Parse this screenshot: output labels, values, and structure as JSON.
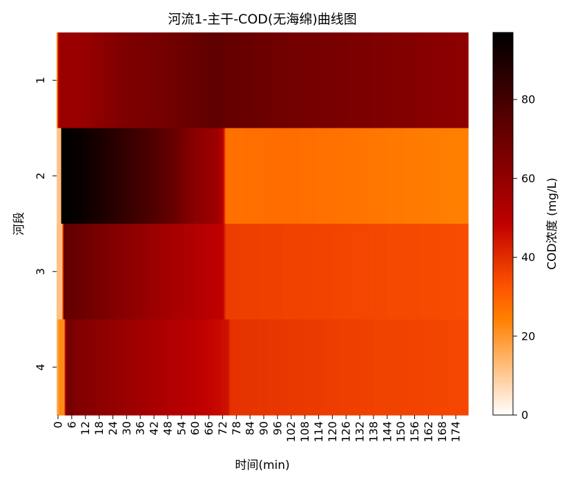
{
  "chart_data": {
    "type": "heatmap",
    "title": "河流1-主干-COD(无海绵)曲线图",
    "xlabel": "时间(min)",
    "ylabel": "河段",
    "colorbar_label": "COD浓度 (mg/L)",
    "colormap": "gist_heat_r",
    "x_range": [
      0,
      180
    ],
    "x_step": 6,
    "x_ticks": [
      "0",
      "6",
      "12",
      "18",
      "24",
      "30",
      "36",
      "42",
      "48",
      "54",
      "60",
      "66",
      "72",
      "78",
      "84",
      "90",
      "96",
      "102",
      "108",
      "114",
      "120",
      "126",
      "132",
      "138",
      "144",
      "150",
      "156",
      "162",
      "168",
      "174"
    ],
    "rows": [
      "1",
      "2",
      "3",
      "4"
    ],
    "colorbar_range": [
      0,
      97
    ],
    "colorbar_ticks": [
      "0",
      "20",
      "40",
      "60",
      "80"
    ],
    "row_profiles": [
      {
        "row": "1",
        "points": [
          [
            0,
            10
          ],
          [
            1,
            58
          ],
          [
            10,
            58
          ],
          [
            30,
            65
          ],
          [
            50,
            68
          ],
          [
            70,
            73
          ],
          [
            73,
            72
          ],
          [
            100,
            68
          ],
          [
            140,
            65
          ],
          [
            180,
            61
          ]
        ]
      },
      {
        "row": "2",
        "points": [
          [
            0,
            10
          ],
          [
            1,
            12
          ],
          [
            1.8,
            12
          ],
          [
            2,
            97
          ],
          [
            10,
            95
          ],
          [
            30,
            84
          ],
          [
            50,
            72
          ],
          [
            60,
            62
          ],
          [
            70,
            57
          ],
          [
            72,
            53
          ],
          [
            73,
            49
          ],
          [
            74,
            27
          ],
          [
            100,
            28
          ],
          [
            140,
            26
          ],
          [
            180,
            24
          ]
        ]
      },
      {
        "row": "3",
        "points": [
          [
            0,
            12
          ],
          [
            2,
            12
          ],
          [
            2.6,
            12
          ],
          [
            3,
            72
          ],
          [
            10,
            70
          ],
          [
            30,
            62
          ],
          [
            50,
            55
          ],
          [
            70,
            49
          ],
          [
            73,
            48
          ],
          [
            74,
            37
          ],
          [
            100,
            36
          ],
          [
            140,
            35
          ],
          [
            180,
            34
          ]
        ]
      },
      {
        "row": "4",
        "points": [
          [
            0,
            12
          ],
          [
            1,
            22
          ],
          [
            3.5,
            22
          ],
          [
            4,
            68
          ],
          [
            10,
            64
          ],
          [
            30,
            58
          ],
          [
            50,
            52
          ],
          [
            70,
            47
          ],
          [
            75,
            45
          ],
          [
            76,
            39
          ],
          [
            100,
            38
          ],
          [
            140,
            36
          ],
          [
            180,
            35
          ]
        ]
      }
    ]
  }
}
